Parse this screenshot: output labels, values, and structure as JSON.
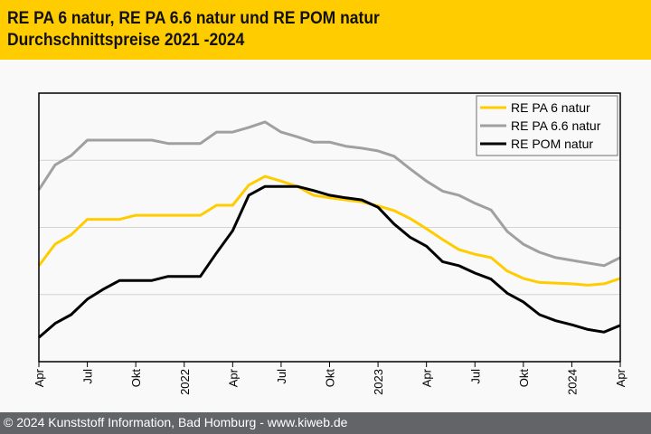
{
  "header": {
    "title_line1": "RE PA 6 natur, RE PA 6.6 natur und RE POM natur",
    "title_line2": "Durchschnittspreise 2021 -2024"
  },
  "footer": {
    "copyright": "© 2024 Kunststoff Information, Bad Homburg - www.kiweb.de"
  },
  "chart_data": {
    "type": "line",
    "title": "RE PA 6 natur, RE PA 6.6 natur und RE POM natur Durchschnittspreise 2021 -2024",
    "xlabel": "",
    "ylabel": "",
    "y_note": "No y-axis tick labels shown; values are relative, expressed in gridline-band units (0 = bottom axis, 4 = top of plot)",
    "ylim": [
      0,
      4
    ],
    "grid": true,
    "legend_position": "top-right",
    "x": [
      "2021-04",
      "2021-05",
      "2021-06",
      "2021-07",
      "2021-08",
      "2021-09",
      "2021-10",
      "2021-11",
      "2021-12",
      "2022-01",
      "2022-02",
      "2022-03",
      "2022-04",
      "2022-05",
      "2022-06",
      "2022-07",
      "2022-08",
      "2022-09",
      "2022-10",
      "2022-11",
      "2022-12",
      "2023-01",
      "2023-02",
      "2023-03",
      "2023-04",
      "2023-05",
      "2023-06",
      "2023-07",
      "2023-08",
      "2023-09",
      "2023-10",
      "2023-11",
      "2023-12",
      "2024-01",
      "2024-02",
      "2024-03",
      "2024-04"
    ],
    "x_tick_labels": [
      {
        "index": 0,
        "label": "Apr"
      },
      {
        "index": 3,
        "label": "Jul"
      },
      {
        "index": 6,
        "label": "Okt"
      },
      {
        "index": 9,
        "label": "2022"
      },
      {
        "index": 12,
        "label": "Apr"
      },
      {
        "index": 15,
        "label": "Jul"
      },
      {
        "index": 18,
        "label": "Okt"
      },
      {
        "index": 21,
        "label": "2023"
      },
      {
        "index": 24,
        "label": "Apr"
      },
      {
        "index": 27,
        "label": "Jul"
      },
      {
        "index": 30,
        "label": "Okt"
      },
      {
        "index": 33,
        "label": "2024"
      },
      {
        "index": 36,
        "label": "Apr"
      }
    ],
    "series": [
      {
        "name": "RE PA 6 natur",
        "color": "#ffcc00",
        "values": [
          1.43,
          1.75,
          1.89,
          2.12,
          2.12,
          2.12,
          2.18,
          2.18,
          2.18,
          2.18,
          2.18,
          2.33,
          2.33,
          2.63,
          2.76,
          2.69,
          2.61,
          2.48,
          2.44,
          2.41,
          2.38,
          2.32,
          2.25,
          2.13,
          1.98,
          1.82,
          1.67,
          1.6,
          1.55,
          1.35,
          1.24,
          1.18,
          1.17,
          1.16,
          1.14,
          1.16,
          1.24
        ]
      },
      {
        "name": "RE PA 6.6 natur",
        "color": "#a0a0a0",
        "values": [
          2.56,
          2.93,
          3.07,
          3.3,
          3.3,
          3.3,
          3.3,
          3.3,
          3.25,
          3.25,
          3.25,
          3.42,
          3.42,
          3.49,
          3.57,
          3.42,
          3.35,
          3.27,
          3.27,
          3.21,
          3.18,
          3.14,
          3.06,
          2.87,
          2.69,
          2.54,
          2.48,
          2.36,
          2.26,
          1.94,
          1.75,
          1.63,
          1.55,
          1.51,
          1.47,
          1.43,
          1.55
        ]
      },
      {
        "name": "RE POM natur",
        "color": "#000000",
        "values": [
          0.36,
          0.57,
          0.7,
          0.93,
          1.08,
          1.21,
          1.21,
          1.21,
          1.27,
          1.27,
          1.27,
          1.62,
          1.95,
          2.48,
          2.61,
          2.61,
          2.61,
          2.55,
          2.48,
          2.44,
          2.41,
          2.3,
          2.05,
          1.85,
          1.72,
          1.49,
          1.43,
          1.32,
          1.23,
          1.02,
          0.89,
          0.7,
          0.61,
          0.55,
          0.48,
          0.44,
          0.54
        ]
      }
    ]
  }
}
